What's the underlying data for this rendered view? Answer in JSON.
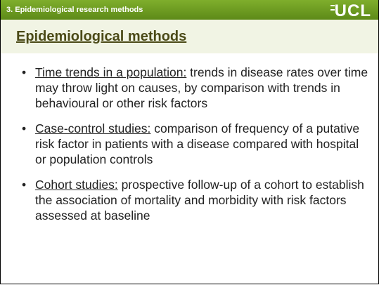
{
  "header": {
    "section": "3. Epidemiological research methods",
    "logo": "UCL"
  },
  "title": "Epidemiological methods",
  "bullets": [
    {
      "term": "Time trends in a population:",
      "text": " trends in disease rates over time may throw light on causes, by comparison with trends in behavioural or other risk factors"
    },
    {
      "term": "Case-control studies:",
      "text": " comparison of frequency of a putative risk factor in patients with a disease compared with hospital or population controls"
    },
    {
      "term": "Cohort studies:",
      "text": " prospective follow-up of a cohort to establish the association of mortality and morbidity with risk factors assessed at baseline"
    }
  ]
}
